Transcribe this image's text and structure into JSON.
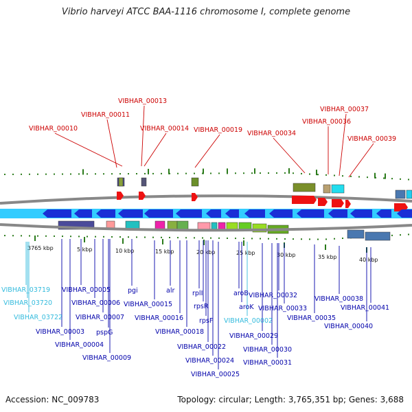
{
  "title": "Vibrio harveyi ATCC BAA-1116 chromosome I, complete genome",
  "footer": {
    "accession": "Accession: NC_009783",
    "summary": "Topology: circular; Length: 3,765,351 bp; Genes: 3,688"
  },
  "colors": {
    "upper_label": "#cc0000",
    "lower_label": "#0000aa",
    "cyan_label": "#33bbdd",
    "tick": "#2a7a1a",
    "backbone": "#777777",
    "strand_fill": "#33ccff",
    "arrow_blue": "#1a2fd6"
  },
  "scale": {
    "ticks": [
      {
        "label": "3765 kbp"
      },
      {
        "label": "5 kbp"
      },
      {
        "label": "10 kbp"
      },
      {
        "label": "15 kbp"
      },
      {
        "label": "20 kbp"
      },
      {
        "label": "25 kbp"
      },
      {
        "label": "30 kbp"
      },
      {
        "label": "35 kbp"
      },
      {
        "label": "40 kbp"
      }
    ]
  },
  "upper_labels": [
    {
      "text": "VIBHAR_00010"
    },
    {
      "text": "VIBHAR_00011"
    },
    {
      "text": "VIBHAR_00013"
    },
    {
      "text": "VIBHAR_00014"
    },
    {
      "text": "VIBHAR_00019"
    },
    {
      "text": "VIBHAR_00034"
    },
    {
      "text": "VIBHAR_00036"
    },
    {
      "text": "VIBHAR_00037"
    },
    {
      "text": "VIBHAR_00039"
    }
  ],
  "lower_labels": [
    {
      "text": "VIBHAR_03719",
      "color": "cyan"
    },
    {
      "text": "VIBHAR_03720",
      "color": "cyan"
    },
    {
      "text": "VIBHAR_03722",
      "color": "cyan"
    },
    {
      "text": "VIBHAR_00003",
      "color": "blue"
    },
    {
      "text": "VIBHAR_00004",
      "color": "blue"
    },
    {
      "text": "VIBHAR_00005",
      "color": "blue"
    },
    {
      "text": "VIBHAR_00006",
      "color": "blue"
    },
    {
      "text": "VIBHAR_00007",
      "color": "blue"
    },
    {
      "text": "pspG",
      "color": "blue"
    },
    {
      "text": "VIBHAR_00009",
      "color": "blue"
    },
    {
      "text": "pgi",
      "color": "blue"
    },
    {
      "text": "VIBHAR_00015",
      "color": "blue"
    },
    {
      "text": "alr",
      "color": "blue"
    },
    {
      "text": "VIBHAR_00016",
      "color": "blue"
    },
    {
      "text": "VIBHAR_00018",
      "color": "blue"
    },
    {
      "text": "rplI",
      "color": "blue"
    },
    {
      "text": "rpsR",
      "color": "blue"
    },
    {
      "text": "rpsF",
      "color": "blue"
    },
    {
      "text": "VIBHAR_00022",
      "color": "blue"
    },
    {
      "text": "VIBHAR_00024",
      "color": "blue"
    },
    {
      "text": "VIBHAR_00025",
      "color": "blue"
    },
    {
      "text": "aroB",
      "color": "blue"
    },
    {
      "text": "aroK",
      "color": "blue"
    },
    {
      "text": "VIBHAR_00002",
      "color": "cyan"
    },
    {
      "text": "VIBHAR_00032",
      "color": "blue"
    },
    {
      "text": "VIBHAR_00033",
      "color": "blue"
    },
    {
      "text": "VIBHAR_00029",
      "color": "blue"
    },
    {
      "text": "VIBHAR_00030",
      "color": "blue"
    },
    {
      "text": "VIBHAR_00031",
      "color": "blue"
    },
    {
      "text": "VIBHAR_00035",
      "color": "blue"
    },
    {
      "text": "VIBHAR_00038",
      "color": "blue"
    },
    {
      "text": "VIBHAR_00041",
      "color": "blue"
    },
    {
      "text": "VIBHAR_00040",
      "color": "blue"
    }
  ]
}
